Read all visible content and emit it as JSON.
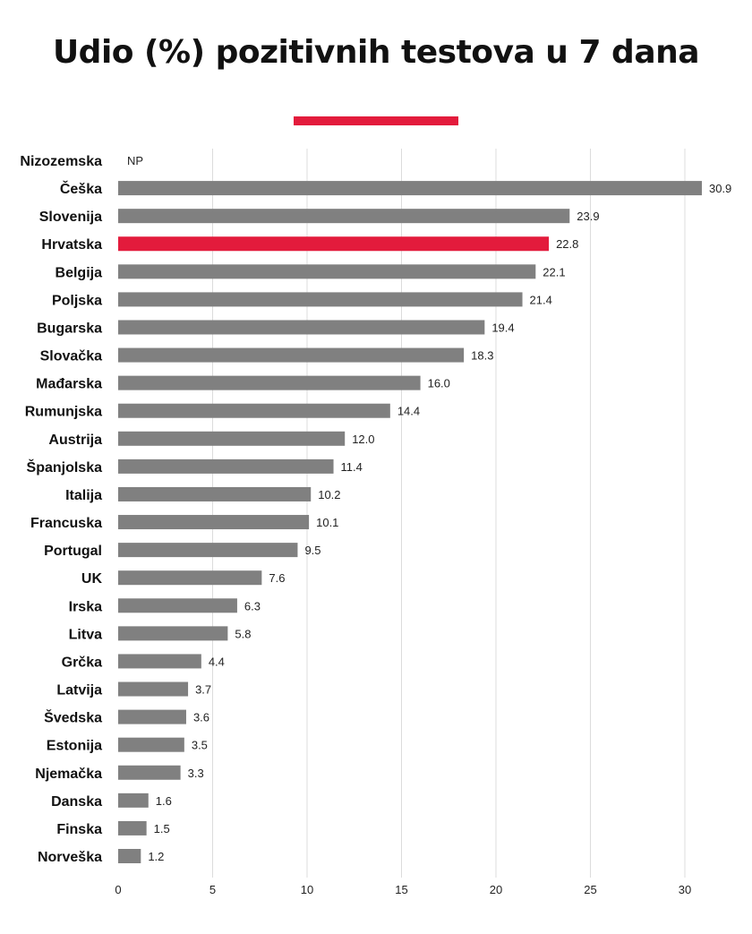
{
  "title": "Udio (%) pozitivnih testova u 7 dana",
  "colors": {
    "accent": "#e31b3c",
    "bar": "#808080",
    "highlight": "#e31b3c",
    "grid": "#dcdcdc"
  },
  "chart_data": {
    "type": "bar",
    "orientation": "horizontal",
    "title": "Udio (%) pozitivnih testova u 7 dana",
    "xlabel": "",
    "ylabel": "",
    "xlim": [
      0,
      31.5
    ],
    "xticks": [
      0,
      5,
      10,
      15,
      20,
      25,
      30
    ],
    "grid": "vertical",
    "categories": [
      "Nizozemska",
      "Češka",
      "Slovenija",
      "Hrvatska",
      "Belgija",
      "Poljska",
      "Bugarska",
      "Slovačka",
      "Mađarska",
      "Rumunjska",
      "Austrija",
      "Španjolska",
      "Italija",
      "Francuska",
      "Portugal",
      "UK",
      "Irska",
      "Litva",
      "Grčka",
      "Latvija",
      "Švedska",
      "Estonija",
      "Njemačka",
      "Danska",
      "Finska",
      "Norveška"
    ],
    "values": [
      null,
      30.9,
      23.9,
      22.8,
      22.1,
      21.4,
      19.4,
      18.3,
      16.0,
      14.4,
      12.0,
      11.4,
      10.2,
      10.1,
      9.5,
      7.6,
      6.3,
      5.8,
      4.4,
      3.7,
      3.6,
      3.5,
      3.3,
      1.6,
      1.5,
      1.2
    ],
    "value_labels": [
      "NP",
      "30.9",
      "23.9",
      "22.8",
      "22.1",
      "21.4",
      "19.4",
      "18.3",
      "16.0",
      "14.4",
      "12.0",
      "11.4",
      "10.2",
      "10.1",
      "9.5",
      "7.6",
      "6.3",
      "5.8",
      "4.4",
      "3.7",
      "3.6",
      "3.5",
      "3.3",
      "1.6",
      "1.5",
      "1.2"
    ],
    "highlight_category": "Hrvatska"
  }
}
